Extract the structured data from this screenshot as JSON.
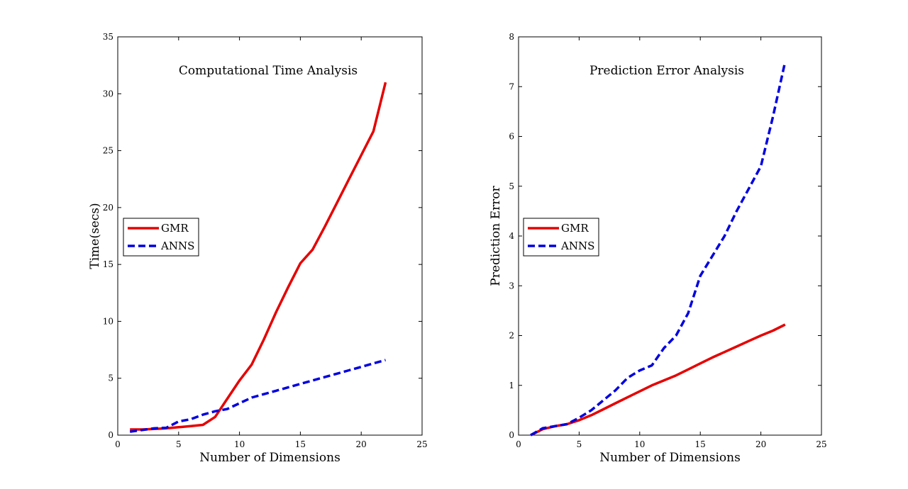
{
  "chart_data": [
    {
      "type": "line",
      "title": "Computational Time Analysis",
      "xlabel": "Number of Dimensions",
      "ylabel": "Time(secs)",
      "xlim": [
        0,
        25
      ],
      "ylim": [
        0,
        35
      ],
      "xticks": [
        0,
        5,
        10,
        15,
        20,
        25
      ],
      "yticks": [
        0,
        5,
        10,
        15,
        20,
        25,
        30,
        35
      ],
      "grid": false,
      "legend_position": "left-middle",
      "series": [
        {
          "name": "GMR",
          "color": "#e60000",
          "dash": "solid",
          "x": [
            1,
            2,
            3,
            4,
            5,
            6,
            7,
            8,
            9,
            10,
            11,
            12,
            13,
            14,
            15,
            16,
            17,
            18,
            19,
            20,
            21,
            22
          ],
          "y": [
            0.5,
            0.5,
            0.55,
            0.6,
            0.7,
            0.8,
            0.9,
            1.6,
            3.2,
            4.8,
            6.2,
            8.4,
            10.8,
            13.0,
            15.1,
            16.3,
            18.3,
            20.4,
            22.5,
            24.6,
            26.7,
            31.0
          ]
        },
        {
          "name": "ANNS",
          "color": "#0000e0",
          "dash": "dashed",
          "x": [
            1,
            2,
            3,
            4,
            5,
            6,
            7,
            8,
            9,
            10,
            11,
            12,
            13,
            14,
            15,
            16,
            17,
            18,
            19,
            20,
            21,
            22
          ],
          "y": [
            0.3,
            0.45,
            0.6,
            0.65,
            1.2,
            1.4,
            1.8,
            2.1,
            2.3,
            2.8,
            3.3,
            3.6,
            3.9,
            4.2,
            4.5,
            4.8,
            5.1,
            5.4,
            5.7,
            6.0,
            6.3,
            6.6
          ]
        }
      ]
    },
    {
      "type": "line",
      "title": "Prediction Error Analysis",
      "xlabel": "Number of Dimensions",
      "ylabel": "Prediction Error",
      "xlim": [
        0,
        25
      ],
      "ylim": [
        0,
        8
      ],
      "xticks": [
        0,
        5,
        10,
        15,
        20,
        25
      ],
      "yticks": [
        0,
        1,
        2,
        3,
        4,
        5,
        6,
        7,
        8
      ],
      "grid": false,
      "legend_position": "left-middle",
      "series": [
        {
          "name": "GMR",
          "color": "#e60000",
          "dash": "solid",
          "x": [
            1,
            2,
            3,
            4,
            5,
            6,
            7,
            8,
            9,
            10,
            11,
            12,
            13,
            14,
            15,
            16,
            17,
            18,
            19,
            20,
            21,
            22
          ],
          "y": [
            0.0,
            0.12,
            0.18,
            0.22,
            0.3,
            0.4,
            0.52,
            0.64,
            0.76,
            0.88,
            1.0,
            1.1,
            1.2,
            1.32,
            1.44,
            1.56,
            1.67,
            1.78,
            1.89,
            2.0,
            2.1,
            2.22
          ]
        },
        {
          "name": "ANNS",
          "color": "#0000e0",
          "dash": "dashed",
          "x": [
            1,
            2,
            3,
            4,
            5,
            6,
            7,
            8,
            9,
            10,
            11,
            12,
            13,
            14,
            15,
            16,
            17,
            18,
            19,
            20,
            21,
            22
          ],
          "y": [
            0.0,
            0.14,
            0.18,
            0.22,
            0.35,
            0.5,
            0.7,
            0.9,
            1.15,
            1.3,
            1.4,
            1.75,
            2.0,
            2.45,
            3.2,
            3.6,
            4.0,
            4.5,
            4.95,
            5.4,
            6.4,
            7.5
          ]
        }
      ]
    }
  ]
}
